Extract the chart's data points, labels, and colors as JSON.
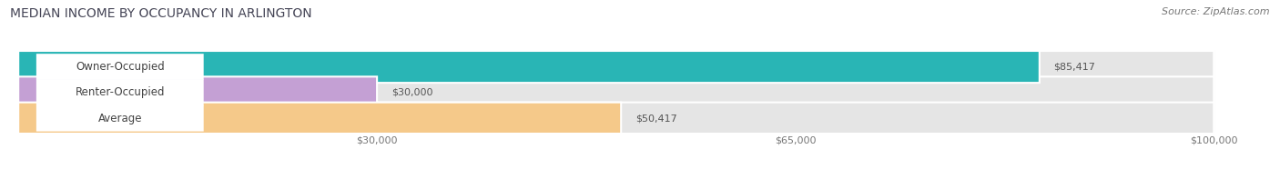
{
  "title": "MEDIAN INCOME BY OCCUPANCY IN ARLINGTON",
  "source": "Source: ZipAtlas.com",
  "categories": [
    "Owner-Occupied",
    "Renter-Occupied",
    "Average"
  ],
  "values": [
    85417,
    30000,
    50417
  ],
  "bar_colors": [
    "#29b5b5",
    "#c4a0d4",
    "#f5c98a"
  ],
  "bar_bg_color": "#e5e5e5",
  "value_labels": [
    "$85,417",
    "$30,000",
    "$50,417"
  ],
  "x_ticks": [
    30000,
    65000,
    100000
  ],
  "x_tick_labels": [
    "$30,000",
    "$65,000",
    "$100,000"
  ],
  "xmax": 100000,
  "title_fontsize": 10,
  "source_fontsize": 8,
  "label_fontsize": 8.5,
  "tick_fontsize": 8,
  "value_label_fontsize": 8
}
